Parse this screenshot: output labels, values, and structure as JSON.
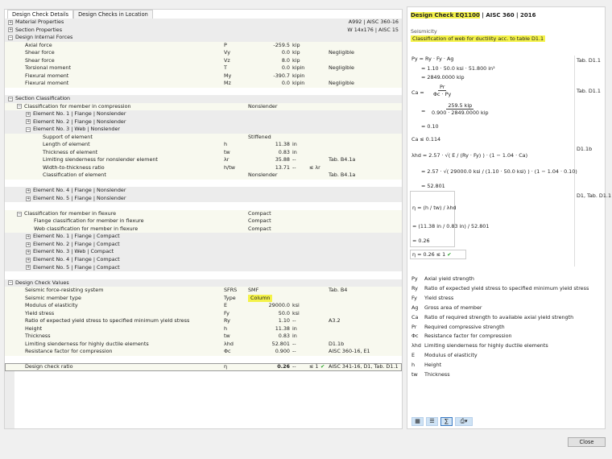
{
  "tabs": [
    "Design Check Details",
    "Design Checks in Location"
  ],
  "rows": [
    {
      "k": "g",
      "lv": 0,
      "ex": "+",
      "label": "Material Properties",
      "right": "A992 | AISC 360-16"
    },
    {
      "k": "g",
      "lv": 0,
      "ex": "+",
      "label": "Section Properties",
      "right": "W 14x176 | AISC 15"
    },
    {
      "k": "g",
      "lv": 0,
      "ex": "−",
      "label": "Design Internal Forces"
    },
    {
      "k": "d",
      "lv": 1,
      "label": "Axial force",
      "sym": "P",
      "val": "-259.5",
      "unit": "kip"
    },
    {
      "k": "d",
      "lv": 1,
      "label": "Shear force",
      "sym": "Vy",
      "val": "0.0",
      "unit": "kip",
      "note": "Negligible"
    },
    {
      "k": "d",
      "lv": 1,
      "label": "Shear force",
      "sym": "Vz",
      "val": "8.0",
      "unit": "kip"
    },
    {
      "k": "d",
      "lv": 1,
      "label": "Torsional moment",
      "sym": "T",
      "val": "0.0",
      "unit": "kipin",
      "note": "Negligible"
    },
    {
      "k": "d",
      "lv": 1,
      "label": "Flexural moment",
      "sym": "My",
      "val": "-390.7",
      "unit": "kipin"
    },
    {
      "k": "d",
      "lv": 1,
      "label": "Flexural moment",
      "sym": "Mz",
      "val": "0.0",
      "unit": "kipin",
      "note": "Negligible"
    },
    {
      "k": "b"
    },
    {
      "k": "g",
      "lv": 0,
      "ex": "−",
      "label": "Section Classification"
    },
    {
      "k": "d",
      "lv": 1,
      "ex": "−",
      "label": "Classification for member in compression",
      "val2": "Nonslender"
    },
    {
      "k": "e",
      "lv": 2,
      "ex": "+",
      "label": "Element No. 1 | Flange | Nonslender"
    },
    {
      "k": "e",
      "lv": 2,
      "ex": "+",
      "label": "Element No. 2 | Flange | Nonslender"
    },
    {
      "k": "e",
      "lv": 2,
      "ex": "−",
      "label": "Element No. 3 | Web | Nonslender"
    },
    {
      "k": "d",
      "lv": 3,
      "label": "Support of element",
      "val2": "Stiffened"
    },
    {
      "k": "d",
      "lv": 3,
      "label": "Length of element",
      "sym": "h",
      "val": "11.38",
      "unit": "in"
    },
    {
      "k": "d",
      "lv": 3,
      "label": "Thickness of element",
      "sym": "tw",
      "val": "0.83",
      "unit": "in"
    },
    {
      "k": "d",
      "lv": 3,
      "label": "Limiting slenderness for nonslender element",
      "sym": "λr",
      "val": "35.88",
      "unit": "--",
      "note": "Tab. B4.1a"
    },
    {
      "k": "d",
      "lv": 3,
      "label": "Width-to-thickness ratio",
      "sym": "h/tw",
      "val": "13.71",
      "unit": "--",
      "cmp": "≤ λr"
    },
    {
      "k": "d",
      "lv": 3,
      "label": "Classification of element",
      "val2": "Nonslender",
      "note": "Tab. B4.1a"
    },
    {
      "k": "b"
    },
    {
      "k": "e",
      "lv": 2,
      "ex": "+",
      "label": "Element No. 4 | Flange | Nonslender"
    },
    {
      "k": "e",
      "lv": 2,
      "ex": "+",
      "label": "Element No. 5 | Flange | Nonslender"
    },
    {
      "k": "b"
    },
    {
      "k": "d",
      "lv": 1,
      "ex": "−",
      "label": "Classification for member in flexure",
      "val2": "Compact"
    },
    {
      "k": "d",
      "lv": 2,
      "label": "Flange classification for member in flexure",
      "val2": "Compact"
    },
    {
      "k": "d",
      "lv": 2,
      "label": "Web classification for member in flexure",
      "val2": "Compact"
    },
    {
      "k": "e",
      "lv": 2,
      "ex": "+",
      "label": "Element No. 1 | Flange | Compact"
    },
    {
      "k": "e",
      "lv": 2,
      "ex": "+",
      "label": "Element No. 2 | Flange | Compact"
    },
    {
      "k": "e",
      "lv": 2,
      "ex": "+",
      "label": "Element No. 3 | Web | Compact"
    },
    {
      "k": "e",
      "lv": 2,
      "ex": "+",
      "label": "Element No. 4 | Flange | Compact"
    },
    {
      "k": "e",
      "lv": 2,
      "ex": "+",
      "label": "Element No. 5 | Flange | Compact"
    },
    {
      "k": "b"
    },
    {
      "k": "g",
      "lv": 0,
      "ex": "−",
      "label": "Design Check Values"
    },
    {
      "k": "d",
      "lv": 1,
      "label": "Seismic force-resisting system",
      "sym": "SFRS",
      "val2": "SMF",
      "note": "Tab. B4"
    },
    {
      "k": "d",
      "lv": 1,
      "label": "Seismic member type",
      "sym": "Type",
      "val2": "Column",
      "hl": true
    },
    {
      "k": "d",
      "lv": 1,
      "label": "Modulus of elasticity",
      "sym": "E",
      "val": "29000.0",
      "unit": "ksi"
    },
    {
      "k": "d",
      "lv": 1,
      "label": "Yield stress",
      "sym": "Fy",
      "val": "50.0",
      "unit": "ksi"
    },
    {
      "k": "d",
      "lv": 1,
      "label": "Ratio of expected yield stress to specified minimum yield stress",
      "sym": "Ry",
      "val": "1.10",
      "unit": "--",
      "note": "A3.2"
    },
    {
      "k": "d",
      "lv": 1,
      "label": "Height",
      "sym": "h",
      "val": "11.38",
      "unit": "in"
    },
    {
      "k": "d",
      "lv": 1,
      "label": "Thickness",
      "sym": "tw",
      "val": "0.83",
      "unit": "in"
    },
    {
      "k": "d",
      "lv": 1,
      "label": "Limiting slenderness for highly ductile elements",
      "sym": "λhd",
      "val": "52.801",
      "unit": "--",
      "note": "D1.1b"
    },
    {
      "k": "d",
      "lv": 1,
      "label": "Resistance factor for compression",
      "sym": "Φc",
      "val": "0.900",
      "unit": "--",
      "note": "AISC 360-16, E1"
    },
    {
      "k": "b"
    },
    {
      "k": "d",
      "lv": 1,
      "label": "Design check ratio",
      "sym": "η",
      "val": "0.26",
      "unit": "--",
      "cmp": "≤ 1",
      "check": "✔",
      "note": "AISC 341-16, D1, Tab. D1.1",
      "bold": true,
      "sel": true
    }
  ],
  "right": {
    "title": "Design Check EQ1100",
    "title_rest": " | AISC 360 | 2016",
    "category": "Seismicity",
    "description": "Classification of web for ductility acc. to table D1.1",
    "eq": {
      "py1": "Py  =  Ry · Fy · Ag",
      "py2": "=  1.10 · 50.0 ksi · 51.800 in²",
      "py3": "=  2849.0000 kip",
      "py_ref": "Tab. D1.1",
      "ca_lhs": "Ca  =",
      "ca_n": "Pr",
      "ca_d": "Φc · Py",
      "ca_n2": "259.5 kip",
      "ca_d2": "0.900 · 2849.0000 kip",
      "ca3": "=  0.10",
      "ca_ref": "Tab. D1.1",
      "ca_lim": "Ca  ≤  0.114",
      "lhd1": "λhd  =  2.57 · √( E / (Ry · Fy) ) · (1 − 1.04 · Ca)",
      "lhd2": "=  2.57 · √( 29000.0 ksi / (1.10 · 50.0 ksi) ) · (1 − 1.04 · 0.10)",
      "lhd3": "=  52.801",
      "lhd_ref": "D1.1b",
      "eta1": "η  =  (h / tw) / λhd",
      "eta2": "=  (11.38 in / 0.83 in) / 52.801",
      "eta3": "=  0.26",
      "eta_ref": "D1, Tab. D1.1",
      "result": "η  =  0.26  ≤ 1",
      "result_check": "✔"
    },
    "legend": [
      {
        "s": "Py",
        "t": "Axial yield strength"
      },
      {
        "s": "Ry",
        "t": "Ratio of expected yield stress to specified minimum yield stress"
      },
      {
        "s": "Fy",
        "t": "Yield stress"
      },
      {
        "s": "Ag",
        "t": "Gross area of member"
      },
      {
        "s": "Ca",
        "t": "Ratio of required strength to available axial yield strength"
      },
      {
        "s": "Pr",
        "t": "Required compressive strength"
      },
      {
        "s": "Φc",
        "t": "Resistance factor for compression"
      },
      {
        "s": "λhd",
        "t": "Limiting slenderness for highly ductile elements"
      },
      {
        "s": "E",
        "t": "Modulus of elasticity"
      },
      {
        "s": "h",
        "t": "Height"
      },
      {
        "s": "tw",
        "t": "Thickness"
      }
    ],
    "toolbar": [
      "image-icon",
      "list-icon",
      "formula-icon",
      "print-icon"
    ]
  },
  "close_label": "Close",
  "colors": {
    "highlight": "#f4f24a",
    "check": "#2aa52a"
  }
}
